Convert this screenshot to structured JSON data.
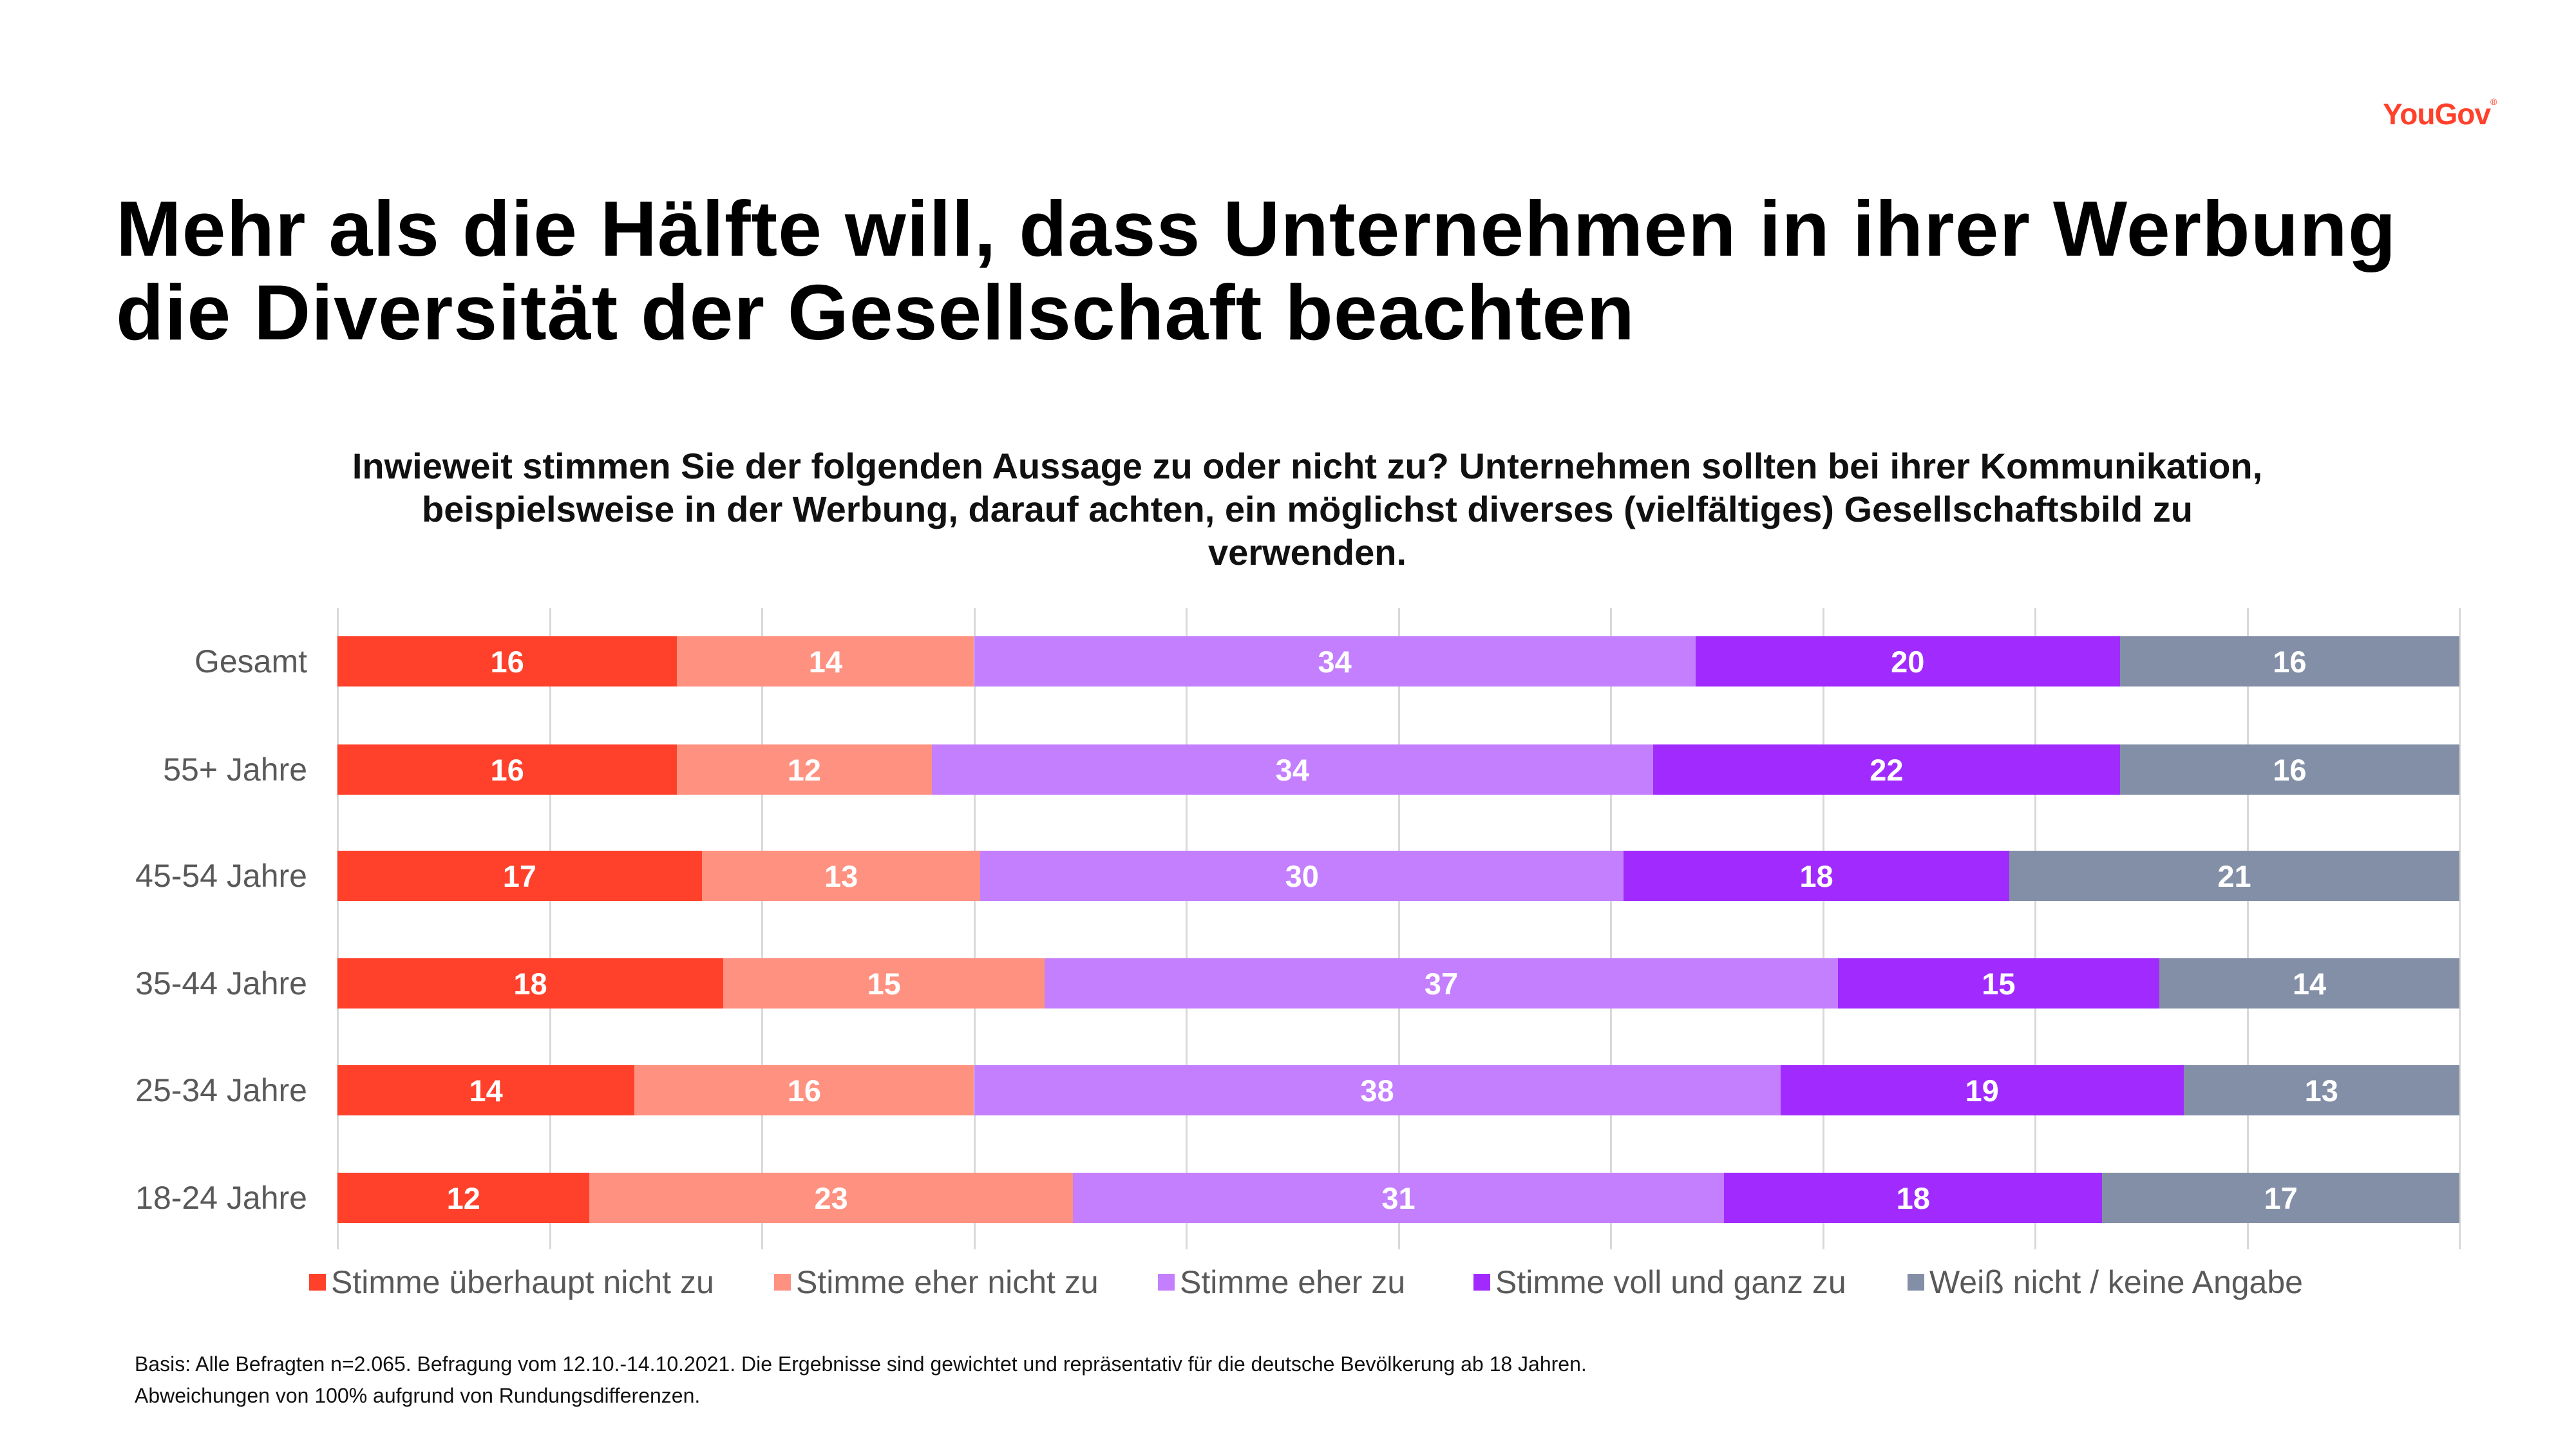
{
  "logo": {
    "text": "YouGov",
    "mark": "®"
  },
  "title": "Mehr als die Hälfte will, dass Unternehmen in ihrer Werbung die Diversität der Gesellschaft beachten",
  "subtitle": "Inwieweit stimmen Sie der folgenden Aussage zu oder nicht zu? Unternehmen sollten bei ihrer Kommunikation, beispielsweise in der Werbung, darauf achten, ein möglichst diverses (vielfältiges) Gesellschaftsbild zu verwenden.",
  "chart_data": {
    "type": "bar",
    "orientation": "horizontal-stacked-100",
    "categories": [
      "Gesamt",
      "55+ Jahre",
      "45-54 Jahre",
      "35-44 Jahre",
      "25-34 Jahre",
      "18-24 Jahre"
    ],
    "series": [
      {
        "name": "Stimme überhaupt nicht zu",
        "color": "#FF412C",
        "values": [
          16,
          16,
          17,
          18,
          14,
          12
        ]
      },
      {
        "name": "Stimme eher nicht zu",
        "color": "#FF9181",
        "values": [
          14,
          12,
          13,
          15,
          16,
          23
        ]
      },
      {
        "name": "Stimme eher zu",
        "color": "#C47FFF",
        "values": [
          34,
          34,
          30,
          37,
          38,
          31
        ]
      },
      {
        "name": "Stimme voll und ganz zu",
        "color": "#A12BFF",
        "values": [
          20,
          22,
          18,
          15,
          19,
          18
        ]
      },
      {
        "name": "Weiß nicht / keine Angabe",
        "color": "#838FA6",
        "values": [
          16,
          16,
          21,
          14,
          13,
          17
        ]
      }
    ],
    "xlim": [
      0,
      100
    ],
    "grid": true,
    "legend": "bottom"
  },
  "footnotes": [
    "Basis: Alle Befragten n=2.065. Befragung vom 12.10.-14.10.2021. Die Ergebnisse sind gewichtet und repräsentativ für die deutsche Bevölkerung ab 18 Jahren.",
    "Abweichungen von 100% aufgrund von Rundungsdifferenzen."
  ]
}
